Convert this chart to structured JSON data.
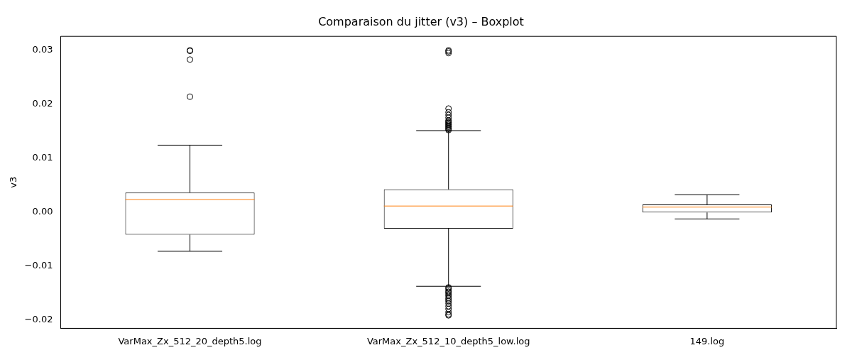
{
  "chart_data": {
    "type": "box",
    "title": "Comparaison du jitter (v3) – Boxplot",
    "ylabel": "v3",
    "categories": [
      "VarMax_Zx_512_20_depth5.log",
      "VarMax_Zx_512_10_depth5_low.log",
      "149.log"
    ],
    "boxes": [
      {
        "low": -0.0073,
        "q1": -0.0042,
        "median": 0.0023,
        "q3": 0.0036,
        "high": 0.0124,
        "outliers": [
          0.03,
          0.0299,
          0.0283,
          0.0214
        ]
      },
      {
        "low": -0.0138,
        "q1": -0.0031,
        "median": 0.0011,
        "q3": 0.0042,
        "high": 0.0151,
        "outliers": [
          0.0152,
          0.0154,
          0.0156,
          0.0158,
          0.016,
          0.0162,
          0.0164,
          0.0166,
          0.0168,
          0.017,
          0.0175,
          0.018,
          0.0185,
          0.0192,
          0.0295,
          0.0298,
          0.03,
          -0.014,
          -0.0142,
          -0.0145,
          -0.0148,
          -0.015,
          -0.0153,
          -0.0156,
          -0.016,
          -0.0163,
          -0.0166,
          -0.017,
          -0.0175,
          -0.018,
          -0.0186,
          -0.019,
          -0.0192
        ]
      },
      {
        "low": -0.0013,
        "q1": -0.0001,
        "median": 0.0009,
        "q3": 0.0014,
        "high": 0.0032
      }
    ],
    "ylim": [
      -0.0216,
      0.0326
    ],
    "yticks": [
      {
        "value": -0.02,
        "label": "−0.02"
      },
      {
        "value": -0.01,
        "label": "−0.01"
      },
      {
        "value": 0,
        "label": "0.00"
      },
      {
        "value": 0.01,
        "label": "0.01"
      },
      {
        "value": 0.02,
        "label": "0.02"
      },
      {
        "value": 0.03,
        "label": "0.03"
      }
    ],
    "grid": false,
    "legend": false,
    "marker": "circle"
  }
}
